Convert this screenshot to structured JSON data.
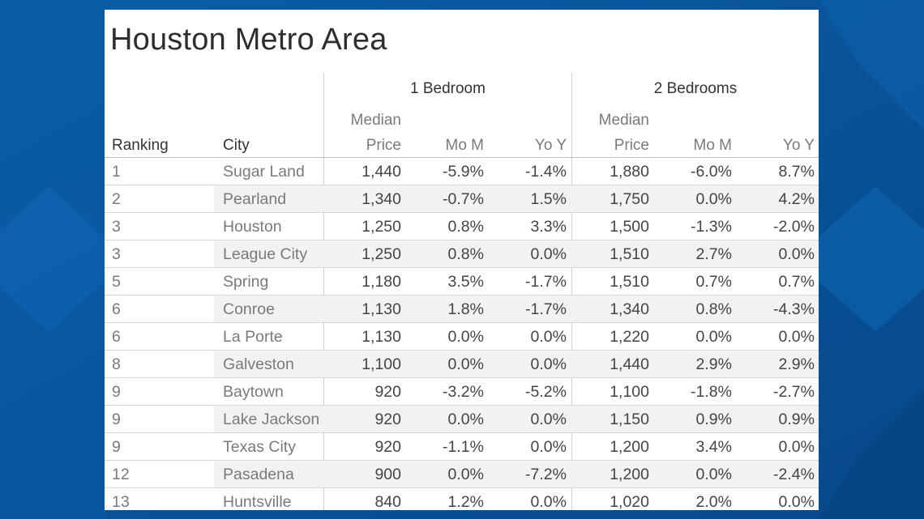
{
  "colors": {
    "background": "#0a56a0",
    "card": "#ffffff",
    "row_band": "#f2f2f2"
  },
  "title": "Houston Metro Area",
  "groups": {
    "one_bedroom": "1 Bedroom",
    "two_bedrooms": "2 Bedrooms"
  },
  "headers": {
    "ranking": "Ranking",
    "city": "City",
    "median": "Median",
    "price": "Price",
    "mom": "Mo M",
    "yoy": "Yo Y"
  },
  "chart_data": {
    "type": "table",
    "title": "Houston Metro Area",
    "columns": [
      "Ranking",
      "City",
      "1 Bedroom Median Price",
      "1 Bedroom Mo M",
      "1 Bedroom Yo Y",
      "2 Bedrooms Median Price",
      "2 Bedrooms Mo M",
      "2 Bedrooms Yo Y"
    ],
    "rows": [
      [
        "1",
        "Sugar Land",
        "1,440",
        "-5.9%",
        "-1.4%",
        "1,880",
        "-6.0%",
        "8.7%"
      ],
      [
        "2",
        "Pearland",
        "1,340",
        "-0.7%",
        "1.5%",
        "1,750",
        "0.0%",
        "4.2%"
      ],
      [
        "3",
        "Houston",
        "1,250",
        "0.8%",
        "3.3%",
        "1,500",
        "-1.3%",
        "-2.0%"
      ],
      [
        "3",
        "League City",
        "1,250",
        "0.8%",
        "0.0%",
        "1,510",
        "2.7%",
        "0.0%"
      ],
      [
        "5",
        "Spring",
        "1,180",
        "3.5%",
        "-1.7%",
        "1,510",
        "0.7%",
        "0.7%"
      ],
      [
        "6",
        "Conroe",
        "1,130",
        "1.8%",
        "-1.7%",
        "1,340",
        "0.8%",
        "-4.3%"
      ],
      [
        "6",
        "La Porte",
        "1,130",
        "0.0%",
        "0.0%",
        "1,220",
        "0.0%",
        "0.0%"
      ],
      [
        "8",
        "Galveston",
        "1,100",
        "0.0%",
        "0.0%",
        "1,440",
        "2.9%",
        "2.9%"
      ],
      [
        "9",
        "Baytown",
        "920",
        "-3.2%",
        "-5.2%",
        "1,100",
        "-1.8%",
        "-2.7%"
      ],
      [
        "9",
        "Lake Jackson",
        "920",
        "0.0%",
        "0.0%",
        "1,150",
        "0.9%",
        "0.9%"
      ],
      [
        "9",
        "Texas City",
        "920",
        "-1.1%",
        "0.0%",
        "1,200",
        "3.4%",
        "0.0%"
      ],
      [
        "12",
        "Pasadena",
        "900",
        "0.0%",
        "-7.2%",
        "1,200",
        "0.0%",
        "-2.4%"
      ],
      [
        "13",
        "Huntsville",
        "840",
        "1.2%",
        "0.0%",
        "1,020",
        "2.0%",
        "0.0%"
      ]
    ]
  }
}
